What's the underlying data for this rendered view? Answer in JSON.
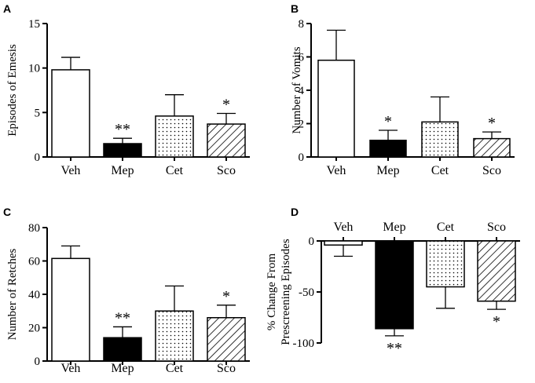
{
  "chart_data": [
    {
      "type": "bar",
      "panel": "A",
      "categories": [
        "Veh",
        "Mep",
        "Cet",
        "Sco"
      ],
      "values": [
        9.8,
        1.5,
        4.6,
        3.7
      ],
      "errors": [
        1.4,
        0.6,
        2.4,
        1.2
      ],
      "significance": [
        "",
        "**",
        "",
        "*"
      ],
      "ylabel": "Episodes of Emesis",
      "ylim": [
        0,
        15
      ],
      "yticks": [
        0,
        5,
        10,
        15
      ],
      "patterns": [
        "white",
        "black",
        "dots",
        "hatch"
      ]
    },
    {
      "type": "bar",
      "panel": "B",
      "categories": [
        "Veh",
        "Mep",
        "Cet",
        "Sco"
      ],
      "values": [
        5.8,
        1.0,
        2.1,
        1.1
      ],
      "errors": [
        1.8,
        0.6,
        1.5,
        0.4
      ],
      "significance": [
        "",
        "*",
        "",
        "*"
      ],
      "ylabel": "Number of Vomits",
      "ylim": [
        0,
        8
      ],
      "yticks": [
        0,
        2,
        4,
        6,
        8
      ],
      "patterns": [
        "white",
        "black",
        "dots",
        "hatch"
      ]
    },
    {
      "type": "bar",
      "panel": "C",
      "categories": [
        "Veh",
        "Mep",
        "Cet",
        "Sco"
      ],
      "values": [
        61.5,
        14.0,
        30.0,
        26.0
      ],
      "errors": [
        7.5,
        6.5,
        15.0,
        7.5
      ],
      "significance": [
        "",
        "**",
        "",
        "*"
      ],
      "ylabel": "Number of Retches",
      "ylim": [
        0,
        80
      ],
      "yticks": [
        0,
        20,
        40,
        60,
        80
      ],
      "patterns": [
        "white",
        "black",
        "dots",
        "hatch"
      ]
    },
    {
      "type": "bar",
      "panel": "D",
      "categories": [
        "Veh",
        "Mep",
        "Cet",
        "Sco"
      ],
      "values": [
        -4,
        -86,
        -45,
        -59
      ],
      "errors": [
        11,
        7,
        21,
        8
      ],
      "significance": [
        "",
        "**",
        "",
        "*"
      ],
      "ylabel": [
        "% Change From",
        "Prescreening Episodes"
      ],
      "ylim": [
        -100,
        0
      ],
      "yticks": [
        -100,
        -50,
        0
      ],
      "patterns": [
        "white",
        "black",
        "dots",
        "hatch"
      ]
    }
  ]
}
